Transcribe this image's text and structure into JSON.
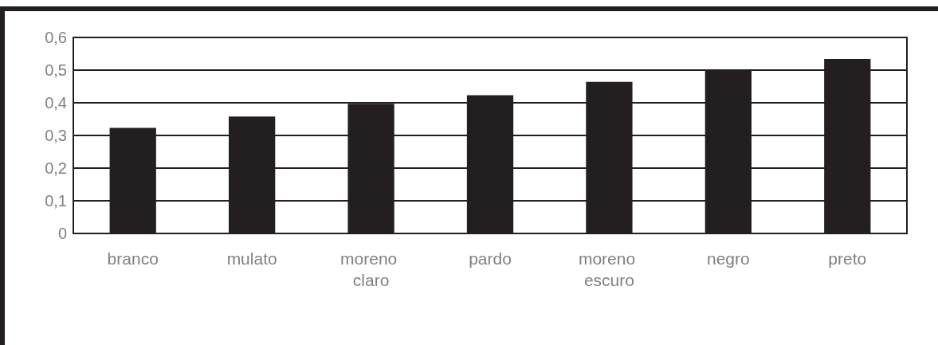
{
  "chart_data": {
    "type": "bar",
    "categories": [
      "branco",
      "mulato",
      "moreno claro",
      "pardo",
      "moreno escuro",
      "negro",
      "preto"
    ],
    "values": [
      0.323,
      0.358,
      0.397,
      0.423,
      0.464,
      0.5,
      0.534
    ],
    "color": "#231f20",
    "ylim": [
      0,
      0.6
    ],
    "yticks": [
      0,
      {
        "value": 0.1,
        "label": "0,1"
      },
      {
        "value": 0.2,
        "label": "0,2"
      },
      {
        "value": 0.3,
        "label": "0,3"
      },
      {
        "value": 0.4,
        "label": "0,4"
      },
      {
        "value": 0.5,
        "label": "0,5"
      },
      {
        "value": 0.6,
        "label": "0,6"
      }
    ],
    "grid": "y"
  }
}
